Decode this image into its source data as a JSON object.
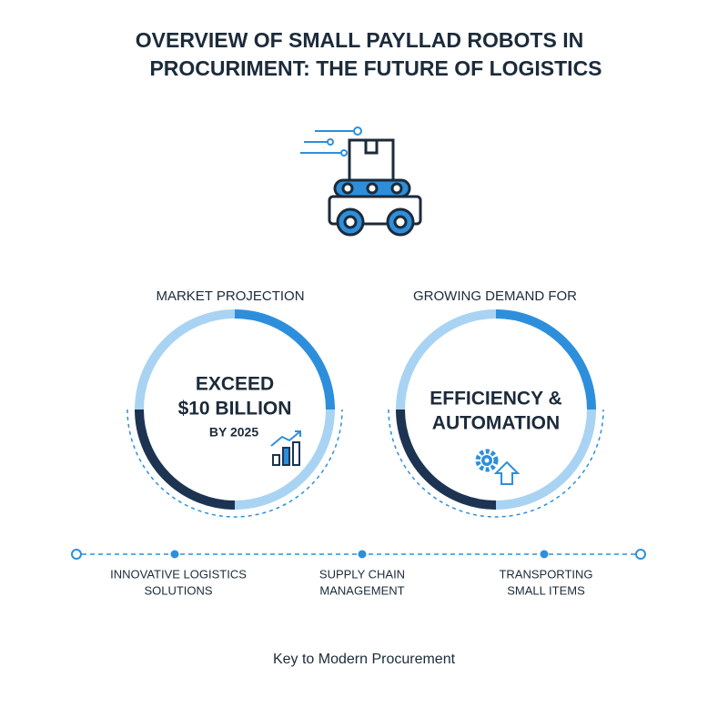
{
  "header": {
    "title_lines": [
      "OVERVIEW OF SMALL PAYLLAD ROBOTS IN",
      "PROCURIMENT: THE FUTURE OF LOGISTICS"
    ]
  },
  "panels": [
    {
      "label": "MARKET PROJECTION",
      "lines": [
        "EXCEED",
        "$10 BILLION"
      ],
      "sub": "BY 2025"
    },
    {
      "label": "GROWING DEMAND FOR",
      "lines": [
        "EFFICIENCY &",
        "AUTOMATION"
      ]
    }
  ],
  "timeline": [
    {
      "lines": [
        "INNOVATIVE LOGISTICS",
        "SOLUTIONS"
      ]
    },
    {
      "lines": [
        "SUPPLY CHAIN",
        "MANAGEMENT"
      ]
    },
    {
      "lines": [
        "TRANSPORTING",
        "SMALL ITEMS"
      ]
    }
  ],
  "footer": "Key to Modern Procurement"
}
